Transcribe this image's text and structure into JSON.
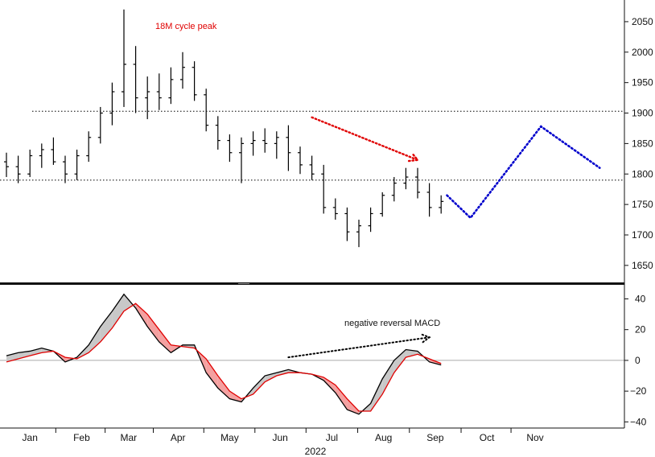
{
  "chart_data": [
    {
      "type": "ohlc",
      "ylim": [
        1630,
        2075
      ],
      "yticks": [
        1650,
        1700,
        1750,
        1800,
        1850,
        1900,
        1950,
        2000,
        2050
      ],
      "x_unit": "trading week index (0 = first week of Jan 2022)",
      "x_range": [
        0,
        46
      ],
      "levels": [
        1903,
        1790
      ],
      "annotation": "18M cycle peak",
      "annotation_color": "#e00000",
      "bar_color": "#000000",
      "projection_color": "#0000cc",
      "arrow_color": "#e00000",
      "bars": [
        {
          "x": 0,
          "o": 1820,
          "h": 1835,
          "l": 1795,
          "c": 1812
        },
        {
          "x": 1,
          "o": 1812,
          "h": 1830,
          "l": 1785,
          "c": 1800
        },
        {
          "x": 2,
          "o": 1800,
          "h": 1840,
          "l": 1795,
          "c": 1830
        },
        {
          "x": 3,
          "o": 1830,
          "h": 1850,
          "l": 1810,
          "c": 1840
        },
        {
          "x": 4,
          "o": 1840,
          "h": 1860,
          "l": 1815,
          "c": 1820
        },
        {
          "x": 5,
          "o": 1820,
          "h": 1830,
          "l": 1785,
          "c": 1800
        },
        {
          "x": 6,
          "o": 1800,
          "h": 1840,
          "l": 1790,
          "c": 1830
        },
        {
          "x": 7,
          "o": 1830,
          "h": 1870,
          "l": 1820,
          "c": 1860
        },
        {
          "x": 8,
          "o": 1860,
          "h": 1910,
          "l": 1850,
          "c": 1900
        },
        {
          "x": 9,
          "o": 1900,
          "h": 1950,
          "l": 1880,
          "c": 1935
        },
        {
          "x": 10,
          "o": 1935,
          "h": 2070,
          "l": 1910,
          "c": 1980
        },
        {
          "x": 11,
          "o": 1980,
          "h": 2010,
          "l": 1900,
          "c": 1925
        },
        {
          "x": 12,
          "o": 1925,
          "h": 1960,
          "l": 1890,
          "c": 1935
        },
        {
          "x": 13,
          "o": 1935,
          "h": 1965,
          "l": 1905,
          "c": 1925
        },
        {
          "x": 14,
          "o": 1925,
          "h": 1975,
          "l": 1915,
          "c": 1955
        },
        {
          "x": 15,
          "o": 1955,
          "h": 2000,
          "l": 1940,
          "c": 1975
        },
        {
          "x": 16,
          "o": 1975,
          "h": 1985,
          "l": 1920,
          "c": 1930
        },
        {
          "x": 17,
          "o": 1930,
          "h": 1940,
          "l": 1870,
          "c": 1880
        },
        {
          "x": 18,
          "o": 1880,
          "h": 1895,
          "l": 1840,
          "c": 1855
        },
        {
          "x": 19,
          "o": 1855,
          "h": 1865,
          "l": 1820,
          "c": 1835
        },
        {
          "x": 20,
          "o": 1835,
          "h": 1860,
          "l": 1785,
          "c": 1850
        },
        {
          "x": 21,
          "o": 1850,
          "h": 1870,
          "l": 1830,
          "c": 1855
        },
        {
          "x": 22,
          "o": 1855,
          "h": 1875,
          "l": 1835,
          "c": 1850
        },
        {
          "x": 23,
          "o": 1850,
          "h": 1870,
          "l": 1825,
          "c": 1860
        },
        {
          "x": 24,
          "o": 1860,
          "h": 1880,
          "l": 1805,
          "c": 1835
        },
        {
          "x": 25,
          "o": 1835,
          "h": 1845,
          "l": 1800,
          "c": 1815
        },
        {
          "x": 26,
          "o": 1815,
          "h": 1830,
          "l": 1790,
          "c": 1800
        },
        {
          "x": 27,
          "o": 1800,
          "h": 1815,
          "l": 1735,
          "c": 1745
        },
        {
          "x": 28,
          "o": 1745,
          "h": 1760,
          "l": 1725,
          "c": 1735
        },
        {
          "x": 29,
          "o": 1735,
          "h": 1745,
          "l": 1690,
          "c": 1705
        },
        {
          "x": 30,
          "o": 1705,
          "h": 1725,
          "l": 1680,
          "c": 1715
        },
        {
          "x": 31,
          "o": 1715,
          "h": 1745,
          "l": 1705,
          "c": 1735
        },
        {
          "x": 32,
          "o": 1735,
          "h": 1770,
          "l": 1730,
          "c": 1765
        },
        {
          "x": 33,
          "o": 1765,
          "h": 1795,
          "l": 1755,
          "c": 1785
        },
        {
          "x": 34,
          "o": 1785,
          "h": 1810,
          "l": 1775,
          "c": 1795
        },
        {
          "x": 35,
          "o": 1795,
          "h": 1810,
          "l": 1760,
          "c": 1770
        },
        {
          "x": 36,
          "o": 1770,
          "h": 1785,
          "l": 1730,
          "c": 1745
        },
        {
          "x": 37,
          "o": 1745,
          "h": 1765,
          "l": 1735,
          "c": 1755
        }
      ],
      "projection": [
        [
          37.5,
          1765
        ],
        [
          39.5,
          1728
        ],
        [
          45.5,
          1878
        ],
        [
          50.5,
          1810
        ]
      ],
      "arrow": [
        [
          26,
          1893
        ],
        [
          35,
          1823
        ]
      ]
    },
    {
      "type": "line",
      "title": "negative reversal MACD",
      "ylim": [
        -44,
        46
      ],
      "yticks": [
        -40,
        -20,
        0,
        20,
        40
      ],
      "zero_line": true,
      "fill_up_color": "#c8c8c8",
      "fill_down_color": "#f4a0a0",
      "series": [
        {
          "color": "#000000",
          "values": [
            [
              0,
              3
            ],
            [
              1,
              5
            ],
            [
              2,
              6
            ],
            [
              3,
              8
            ],
            [
              4,
              6
            ],
            [
              5,
              -1
            ],
            [
              6,
              2
            ],
            [
              7,
              10
            ],
            [
              8,
              22
            ],
            [
              9,
              32
            ],
            [
              10,
              43
            ],
            [
              11,
              34
            ],
            [
              12,
              22
            ],
            [
              13,
              12
            ],
            [
              14,
              5
            ],
            [
              15,
              10
            ],
            [
              16,
              10
            ],
            [
              17,
              -8
            ],
            [
              18,
              -18
            ],
            [
              19,
              -25
            ],
            [
              20,
              -27
            ],
            [
              21,
              -18
            ],
            [
              22,
              -10
            ],
            [
              23,
              -8
            ],
            [
              24,
              -6
            ],
            [
              25,
              -8
            ],
            [
              26,
              -9
            ],
            [
              27,
              -13
            ],
            [
              28,
              -21
            ],
            [
              29,
              -32
            ],
            [
              30,
              -35
            ],
            [
              31,
              -28
            ],
            [
              32,
              -12
            ],
            [
              33,
              0
            ],
            [
              34,
              7
            ],
            [
              35,
              6
            ],
            [
              36,
              -1
            ],
            [
              37,
              -3
            ]
          ]
        },
        {
          "color": "#e00000",
          "values": [
            [
              0,
              -1
            ],
            [
              1,
              1
            ],
            [
              2,
              3
            ],
            [
              3,
              5
            ],
            [
              4,
              6
            ],
            [
              5,
              2
            ],
            [
              6,
              1
            ],
            [
              7,
              5
            ],
            [
              8,
              12
            ],
            [
              9,
              21
            ],
            [
              10,
              32
            ],
            [
              11,
              37
            ],
            [
              12,
              30
            ],
            [
              13,
              20
            ],
            [
              14,
              10
            ],
            [
              15,
              9
            ],
            [
              16,
              8
            ],
            [
              17,
              1
            ],
            [
              18,
              -10
            ],
            [
              19,
              -20
            ],
            [
              20,
              -25
            ],
            [
              21,
              -22
            ],
            [
              22,
              -14
            ],
            [
              23,
              -10
            ],
            [
              24,
              -8
            ],
            [
              25,
              -8
            ],
            [
              26,
              -9
            ],
            [
              27,
              -11
            ],
            [
              28,
              -16
            ],
            [
              29,
              -25
            ],
            [
              30,
              -33
            ],
            [
              31,
              -33
            ],
            [
              32,
              -22
            ],
            [
              33,
              -8
            ],
            [
              34,
              2
            ],
            [
              35,
              4
            ],
            [
              36,
              1
            ],
            [
              37,
              -2
            ]
          ]
        }
      ],
      "arrow": [
        [
          24,
          2
        ],
        [
          36,
          15
        ]
      ]
    }
  ],
  "xaxis": {
    "months": [
      "Jan",
      "Feb",
      "Mar",
      "Apr",
      "May",
      "Jun",
      "Jul",
      "Aug",
      "Sep",
      "Oct",
      "Nov"
    ],
    "month_positions": [
      2.0,
      6.4,
      10.4,
      14.6,
      19.0,
      23.3,
      27.7,
      32.1,
      36.5,
      40.9,
      45.0
    ],
    "year": "2022"
  }
}
